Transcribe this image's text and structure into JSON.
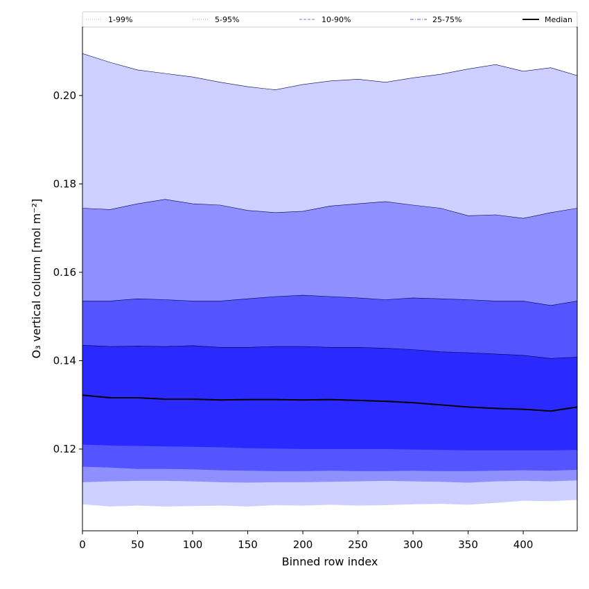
{
  "chart_data": {
    "type": "area",
    "xlabel": "Binned row index",
    "ylabel": "O₃ vertical column [mol m⁻²]",
    "xlim": [
      0,
      449
    ],
    "ylim": [
      0.1015,
      0.2155
    ],
    "xticks": [
      0,
      50,
      100,
      150,
      200,
      250,
      300,
      350,
      400
    ],
    "yticks": [
      0.12,
      0.14,
      0.16,
      0.18,
      0.2
    ],
    "ytick_labels": [
      "0.12",
      "0.14",
      "0.16",
      "0.18",
      "0.20"
    ],
    "grid": false,
    "legend_position": "top, above plot",
    "x": [
      0,
      25,
      50,
      75,
      100,
      125,
      150,
      175,
      200,
      225,
      250,
      275,
      300,
      325,
      350,
      375,
      400,
      425,
      449
    ],
    "bands": [
      {
        "name": "1-99%",
        "color": "#cccfff",
        "line_style": "dotted",
        "line_color": "#b0b0b0",
        "lower": [
          0.1075,
          0.107,
          0.1072,
          0.107,
          0.1071,
          0.1072,
          0.107,
          0.1073,
          0.1072,
          0.1074,
          0.1072,
          0.1073,
          0.1075,
          0.1076,
          0.1074,
          0.1078,
          0.1083,
          0.1082,
          0.1085
        ],
        "upper": [
          0.2095,
          0.2075,
          0.2058,
          0.205,
          0.2042,
          0.203,
          0.202,
          0.2013,
          0.2025,
          0.2033,
          0.2037,
          0.203,
          0.204,
          0.2048,
          0.206,
          0.207,
          0.2055,
          0.2063,
          0.2045
        ]
      },
      {
        "name": "5-95%",
        "color": "#8f8fff",
        "line_style": "dotted",
        "line_color": "#8080ff",
        "lower": [
          0.1125,
          0.1127,
          0.1128,
          0.1128,
          0.1127,
          0.1125,
          0.1124,
          0.1125,
          0.1125,
          0.1126,
          0.1127,
          0.1128,
          0.1127,
          0.1126,
          0.1124,
          0.1127,
          0.1128,
          0.1127,
          0.1129
        ],
        "upper": [
          0.1745,
          0.1742,
          0.1755,
          0.1765,
          0.1755,
          0.1752,
          0.174,
          0.1735,
          0.1738,
          0.175,
          0.1755,
          0.176,
          0.1752,
          0.1745,
          0.1728,
          0.173,
          0.1722,
          0.1735,
          0.1745
        ]
      },
      {
        "name": "10-90%",
        "color": "#5555ff",
        "line_style": "dashed",
        "line_color": "#7070ff",
        "lower": [
          0.116,
          0.1158,
          0.1155,
          0.1155,
          0.1154,
          0.1152,
          0.1151,
          0.115,
          0.115,
          0.1151,
          0.115,
          0.115,
          0.1151,
          0.115,
          0.115,
          0.1151,
          0.1152,
          0.1151,
          0.1153
        ],
        "upper": [
          0.1535,
          0.1535,
          0.154,
          0.1538,
          0.1535,
          0.1535,
          0.154,
          0.1545,
          0.1548,
          0.1545,
          0.1542,
          0.1538,
          0.1542,
          0.154,
          0.1538,
          0.1535,
          0.1535,
          0.1525,
          0.1535
        ]
      },
      {
        "name": "25-75%",
        "color": "#2a2aff",
        "line_style": "dashdot",
        "line_color": "#5a5ae0",
        "lower": [
          0.121,
          0.1208,
          0.1207,
          0.1206,
          0.1205,
          0.1204,
          0.1202,
          0.1201,
          0.12,
          0.12,
          0.12,
          0.12,
          0.1199,
          0.1198,
          0.1197,
          0.1197,
          0.1197,
          0.1197,
          0.1198
        ],
        "upper": [
          0.1435,
          0.1432,
          0.1433,
          0.1432,
          0.1434,
          0.143,
          0.143,
          0.1432,
          0.1432,
          0.143,
          0.143,
          0.1428,
          0.1425,
          0.142,
          0.1418,
          0.1415,
          0.1412,
          0.1405,
          0.1408
        ]
      }
    ],
    "series": [
      {
        "name": "Median",
        "color": "#000000",
        "values": [
          0.1322,
          0.1316,
          0.1316,
          0.1313,
          0.1313,
          0.1311,
          0.1312,
          0.1312,
          0.1311,
          0.1312,
          0.131,
          0.1308,
          0.1305,
          0.13,
          0.1295,
          0.1292,
          0.129,
          0.1286,
          0.1295
        ]
      }
    ]
  }
}
